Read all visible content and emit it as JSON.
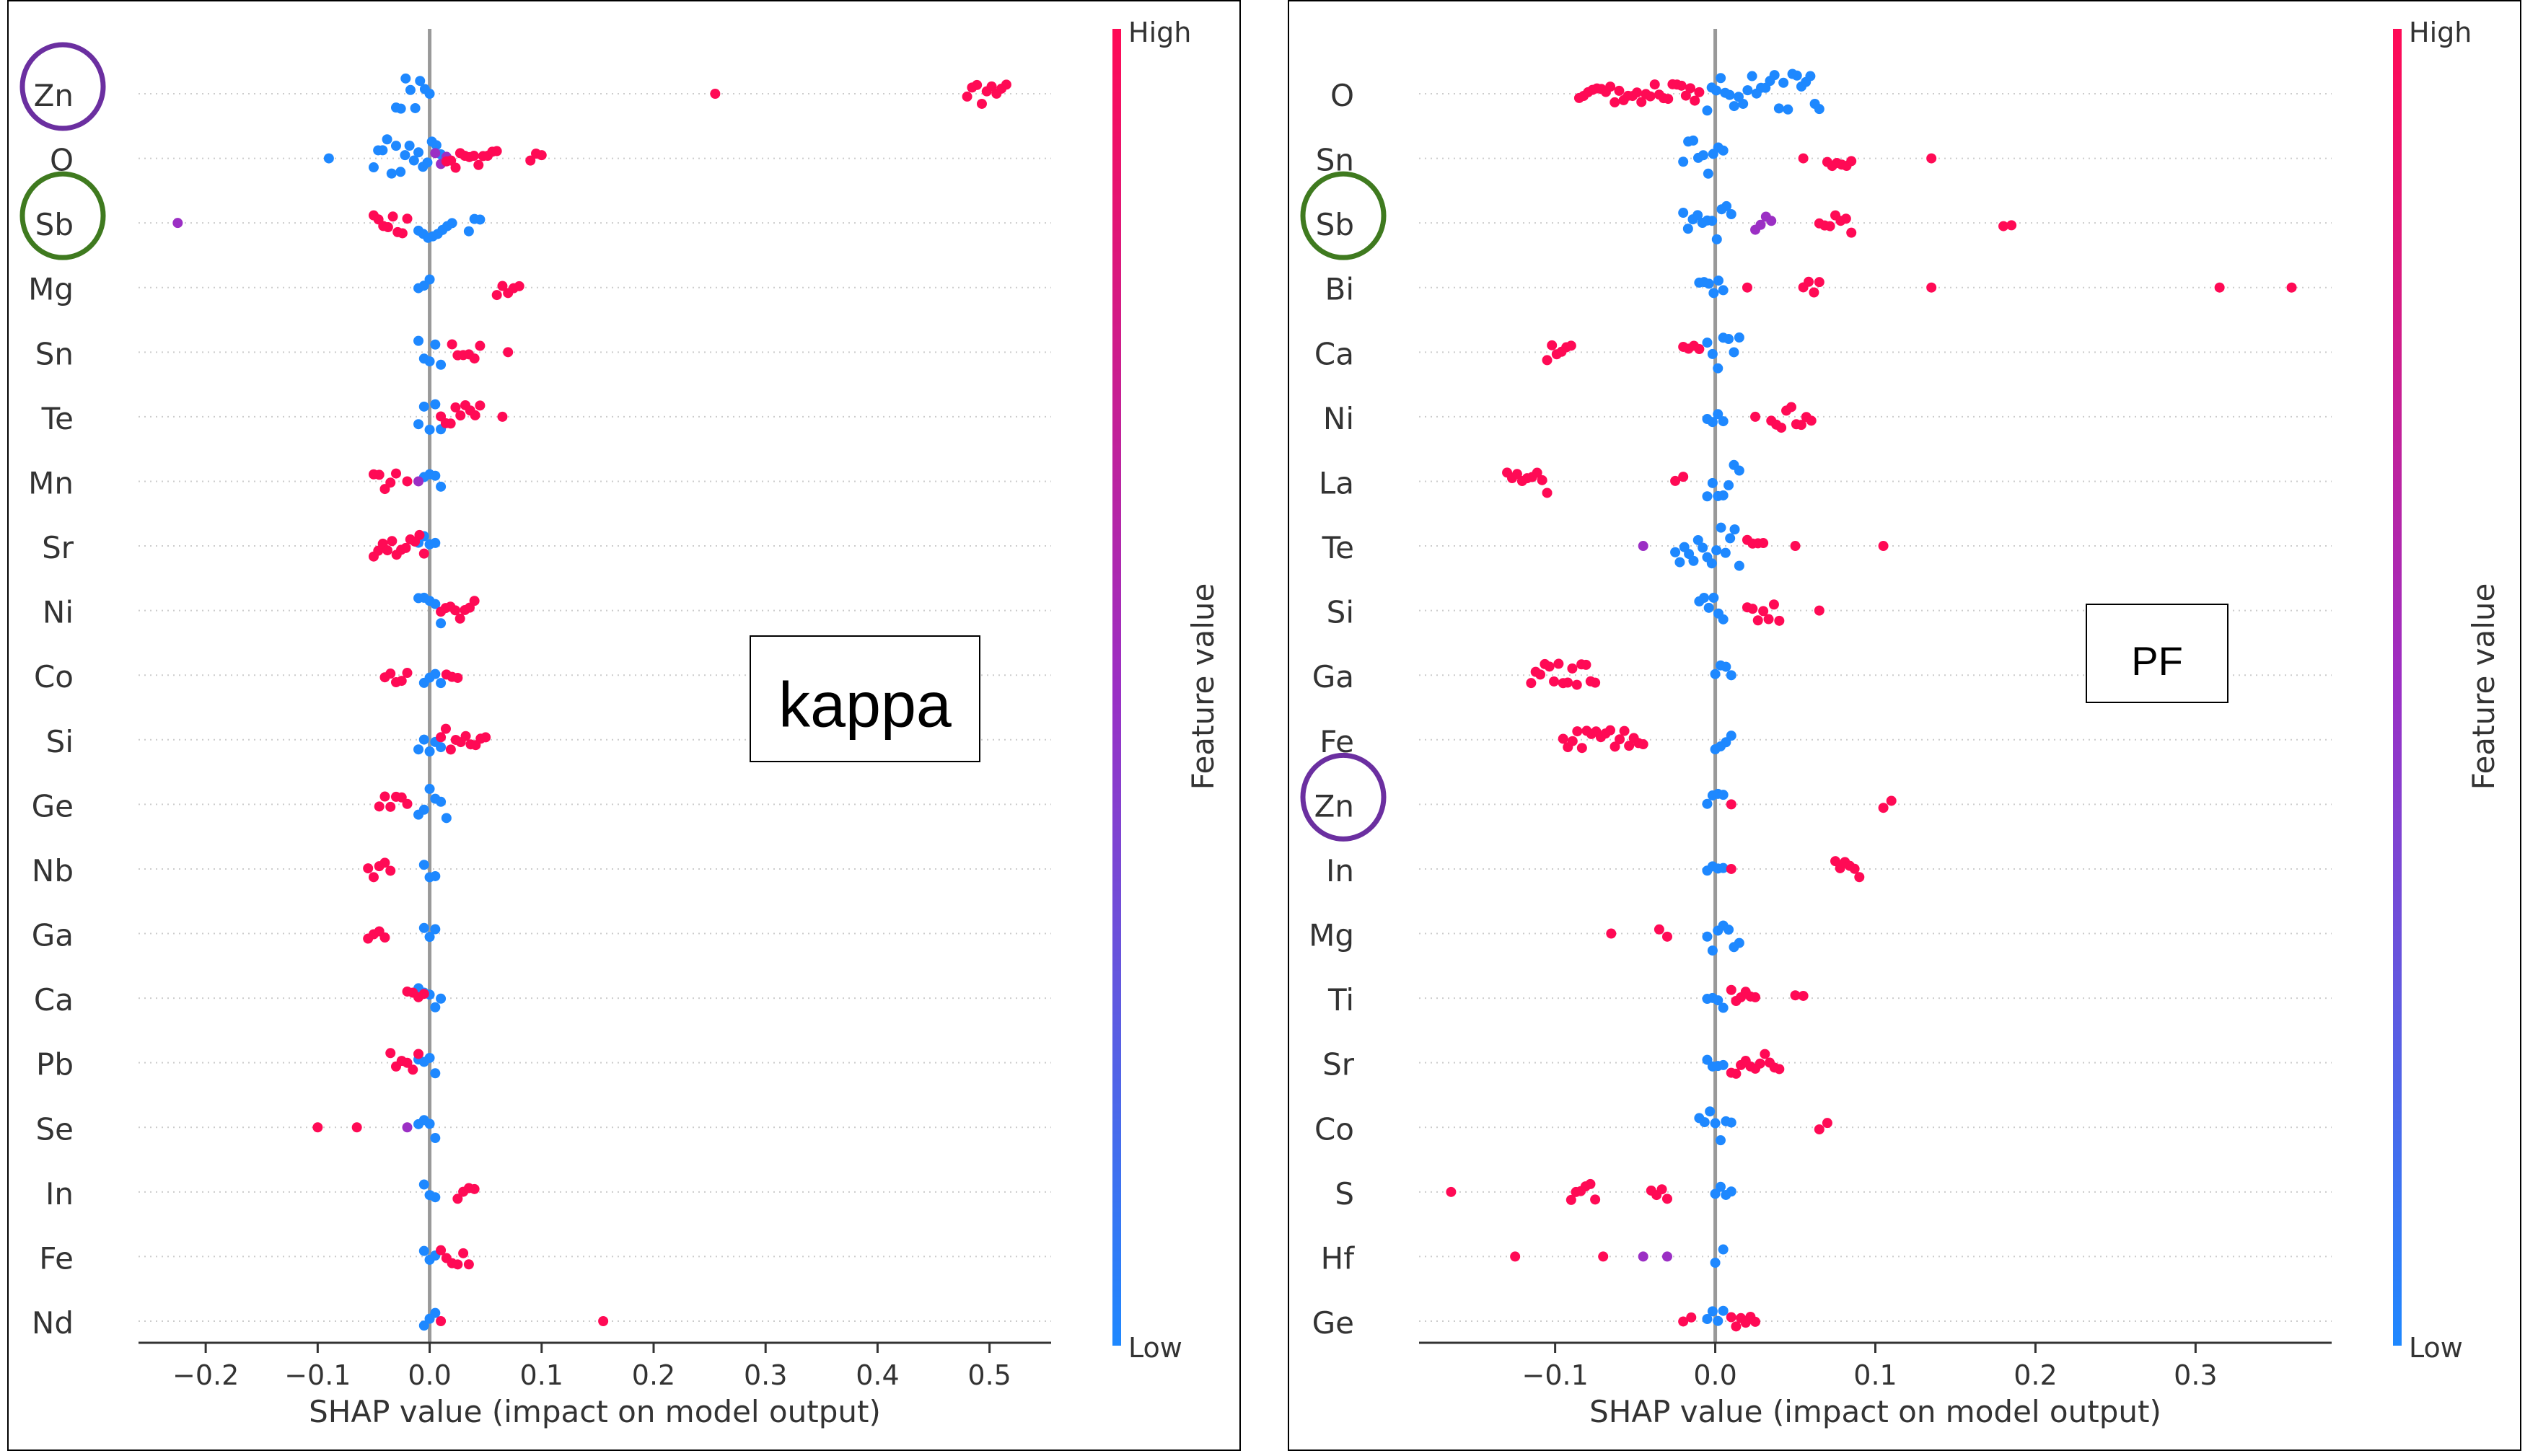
{
  "chart_data": [
    {
      "type": "scatter",
      "subtype": "shap-beeswarm",
      "title": "",
      "tag": "kappa",
      "xlabel": "SHAP value (impact on model output)",
      "xlim": [
        -0.26,
        0.555
      ],
      "xticks": [
        -0.2,
        -0.1,
        0.0,
        0.1,
        0.2,
        0.3,
        0.4,
        0.5
      ],
      "xtick_labels": [
        "−0.2",
        "−0.1",
        "0.0",
        "0.1",
        "0.2",
        "0.3",
        "0.4",
        "0.5"
      ],
      "colorbar": {
        "label": "Feature value",
        "high": "High",
        "low": "Low"
      },
      "circled": [
        {
          "feature": "Zn",
          "color": "#6b2fa0"
        },
        {
          "feature": "Sb",
          "color": "#3f7a1f"
        }
      ],
      "features": [
        {
          "name": "Zn",
          "low": [
            [
              -0.03,
              0.0
            ]
          ],
          "high": [
            [
              0.255,
              0.26
            ],
            [
              0.48,
              0.515
            ]
          ]
        },
        {
          "name": "O",
          "low": [
            [
              -0.09,
              -0.087
            ],
            [
              -0.05,
              0.01
            ]
          ],
          "mid": [
            [
              0.005,
              0.015
            ]
          ],
          "high": [
            [
              0.015,
              0.06
            ],
            [
              0.09,
              0.1
            ]
          ]
        },
        {
          "name": "Sb",
          "low": [
            [
              -0.01,
              0.02
            ],
            [
              0.035,
              0.045
            ]
          ],
          "mid": [
            [
              -0.225,
              -0.225
            ]
          ],
          "high": [
            [
              -0.05,
              -0.02
            ]
          ]
        },
        {
          "name": "Mg",
          "low": [
            [
              -0.01,
              0.0
            ]
          ],
          "high": [
            [
              0.06,
              0.08
            ]
          ]
        },
        {
          "name": "Sn",
          "low": [
            [
              -0.01,
              0.01
            ]
          ],
          "high": [
            [
              0.02,
              0.045
            ],
            [
              0.07,
              0.075
            ]
          ]
        },
        {
          "name": "Te",
          "low": [
            [
              -0.01,
              0.01
            ]
          ],
          "high": [
            [
              0.01,
              0.045
            ],
            [
              0.065,
              0.065
            ]
          ]
        },
        {
          "name": "Mn",
          "low": [
            [
              -0.005,
              0.01
            ]
          ],
          "mid": [
            [
              -0.01,
              -0.01
            ]
          ],
          "high": [
            [
              -0.05,
              -0.03
            ],
            [
              -0.02,
              -0.015
            ]
          ]
        },
        {
          "name": "Sr",
          "low": [
            [
              -0.01,
              0.005
            ]
          ],
          "high": [
            [
              -0.05,
              -0.005
            ]
          ]
        },
        {
          "name": "Ni",
          "low": [
            [
              -0.01,
              0.01
            ]
          ],
          "high": [
            [
              0.01,
              0.04
            ]
          ]
        },
        {
          "name": "Co",
          "low": [
            [
              -0.005,
              0.01
            ]
          ],
          "high": [
            [
              -0.04,
              -0.02
            ],
            [
              0.015,
              0.025
            ]
          ]
        },
        {
          "name": "Si",
          "low": [
            [
              -0.01,
              0.01
            ]
          ],
          "high": [
            [
              0.01,
              0.05
            ]
          ]
        },
        {
          "name": "Ge",
          "low": [
            [
              -0.01,
              0.015
            ]
          ],
          "high": [
            [
              -0.045,
              -0.02
            ]
          ]
        },
        {
          "name": "Nb",
          "low": [
            [
              -0.005,
              0.005
            ]
          ],
          "high": [
            [
              -0.055,
              -0.035
            ]
          ]
        },
        {
          "name": "Ga",
          "low": [
            [
              -0.005,
              0.005
            ]
          ],
          "high": [
            [
              -0.055,
              -0.04
            ]
          ]
        },
        {
          "name": "Ca",
          "low": [
            [
              -0.01,
              0.01
            ]
          ],
          "high": [
            [
              -0.02,
              -0.005
            ]
          ]
        },
        {
          "name": "Pb",
          "low": [
            [
              -0.01,
              0.005
            ]
          ],
          "high": [
            [
              -0.035,
              -0.01
            ]
          ]
        },
        {
          "name": "Se",
          "low": [
            [
              -0.01,
              0.005
            ]
          ],
          "mid": [
            [
              -0.02,
              -0.015
            ]
          ],
          "high": [
            [
              -0.1,
              -0.1
            ],
            [
              -0.065,
              -0.065
            ]
          ]
        },
        {
          "name": "In",
          "low": [
            [
              -0.005,
              0.005
            ]
          ],
          "high": [
            [
              0.025,
              0.04
            ]
          ]
        },
        {
          "name": "Fe",
          "low": [
            [
              -0.005,
              0.005
            ]
          ],
          "high": [
            [
              0.01,
              0.035
            ]
          ]
        },
        {
          "name": "Nd",
          "low": [
            [
              -0.005,
              0.005
            ]
          ],
          "high": [
            [
              0.01,
              0.015
            ],
            [
              0.155,
              0.155
            ]
          ]
        }
      ]
    },
    {
      "type": "scatter",
      "subtype": "shap-beeswarm",
      "title": "",
      "tag": "PF",
      "xlabel": "SHAP value (impact on model output)",
      "xlim": [
        -0.185,
        0.385
      ],
      "xticks": [
        -0.1,
        0.0,
        0.1,
        0.2,
        0.3
      ],
      "xtick_labels": [
        "−0.1",
        "0.0",
        "0.1",
        "0.2",
        "0.3"
      ],
      "colorbar": {
        "label": "Feature value",
        "high": "High",
        "low": "Low"
      },
      "circled": [
        {
          "feature": "Sb",
          "color": "#3f7a1f"
        },
        {
          "feature": "Zn",
          "color": "#6b2fa0"
        }
      ],
      "features": [
        {
          "name": "O",
          "low": [
            [
              -0.005,
              0.065
            ]
          ],
          "high": [
            [
              -0.085,
              -0.01
            ]
          ]
        },
        {
          "name": "Sn",
          "low": [
            [
              -0.02,
              0.005
            ]
          ],
          "high": [
            [
              0.055,
              0.055
            ],
            [
              0.07,
              0.085
            ],
            [
              0.135,
              0.135
            ]
          ]
        },
        {
          "name": "Sb",
          "low": [
            [
              -0.02,
              0.01
            ]
          ],
          "mid": [
            [
              0.025,
              0.035
            ]
          ],
          "high": [
            [
              0.065,
              0.085
            ],
            [
              0.18,
              0.185
            ]
          ]
        },
        {
          "name": "Bi",
          "low": [
            [
              -0.01,
              0.005
            ]
          ],
          "high": [
            [
              0.02,
              0.02
            ],
            [
              0.055,
              0.065
            ],
            [
              0.135,
              0.135
            ],
            [
              0.315,
              0.315
            ],
            [
              0.36,
              0.36
            ]
          ]
        },
        {
          "name": "Ca",
          "low": [
            [
              -0.005,
              0.015
            ]
          ],
          "high": [
            [
              -0.105,
              -0.09
            ],
            [
              -0.02,
              -0.01
            ]
          ]
        },
        {
          "name": "Ni",
          "low": [
            [
              -0.005,
              0.005
            ]
          ],
          "high": [
            [
              0.025,
              0.025
            ],
            [
              0.035,
              0.06
            ]
          ]
        },
        {
          "name": "La",
          "low": [
            [
              -0.005,
              0.015
            ]
          ],
          "high": [
            [
              -0.13,
              -0.105
            ],
            [
              -0.025,
              -0.02
            ]
          ]
        },
        {
          "name": "Te",
          "low": [
            [
              -0.025,
              0.015
            ]
          ],
          "mid": [
            [
              -0.045,
              -0.045
            ]
          ],
          "high": [
            [
              0.02,
              0.03
            ],
            [
              0.05,
              0.05
            ],
            [
              0.105,
              0.105
            ]
          ]
        },
        {
          "name": "Si",
          "low": [
            [
              -0.01,
              0.005
            ]
          ],
          "high": [
            [
              0.02,
              0.04
            ],
            [
              0.065,
              0.065
            ]
          ]
        },
        {
          "name": "Ga",
          "low": [
            [
              0.0,
              0.01
            ]
          ],
          "high": [
            [
              -0.115,
              -0.075
            ]
          ]
        },
        {
          "name": "Fe",
          "low": [
            [
              0.0,
              0.01
            ]
          ],
          "high": [
            [
              -0.095,
              -0.045
            ]
          ]
        },
        {
          "name": "Zn",
          "low": [
            [
              -0.005,
              0.005
            ]
          ],
          "high": [
            [
              0.01,
              0.01
            ],
            [
              0.105,
              0.11
            ]
          ]
        },
        {
          "name": "In",
          "low": [
            [
              -0.005,
              0.005
            ]
          ],
          "high": [
            [
              0.01,
              0.01
            ],
            [
              0.075,
              0.09
            ]
          ]
        },
        {
          "name": "Mg",
          "low": [
            [
              -0.005,
              0.015
            ]
          ],
          "high": [
            [
              -0.065,
              -0.065
            ],
            [
              -0.035,
              -0.03
            ]
          ]
        },
        {
          "name": "Ti",
          "low": [
            [
              -0.005,
              0.005
            ]
          ],
          "high": [
            [
              0.01,
              0.025
            ],
            [
              0.05,
              0.055
            ]
          ]
        },
        {
          "name": "Sr",
          "low": [
            [
              -0.005,
              0.005
            ]
          ],
          "high": [
            [
              0.01,
              0.04
            ]
          ]
        },
        {
          "name": "Co",
          "low": [
            [
              -0.01,
              0.01
            ]
          ],
          "high": [
            [
              0.065,
              0.07
            ]
          ]
        },
        {
          "name": "S",
          "low": [
            [
              0.0,
              0.01
            ]
          ],
          "high": [
            [
              -0.165,
              -0.165
            ],
            [
              -0.09,
              -0.075
            ],
            [
              -0.04,
              -0.03
            ]
          ]
        },
        {
          "name": "Hf",
          "low": [
            [
              0.0,
              0.005
            ]
          ],
          "mid": [
            [
              -0.045,
              -0.045
            ],
            [
              -0.03,
              -0.03
            ]
          ],
          "high": [
            [
              -0.125,
              -0.125
            ],
            [
              -0.07,
              -0.07
            ]
          ]
        },
        {
          "name": "Ge",
          "low": [
            [
              -0.005,
              0.005
            ]
          ],
          "high": [
            [
              -0.02,
              -0.015
            ],
            [
              0.01,
              0.025
            ]
          ]
        }
      ]
    }
  ],
  "colors": {
    "low": "#1e88ff",
    "high": "#ff0a55",
    "mid": "#9b2fc4"
  }
}
